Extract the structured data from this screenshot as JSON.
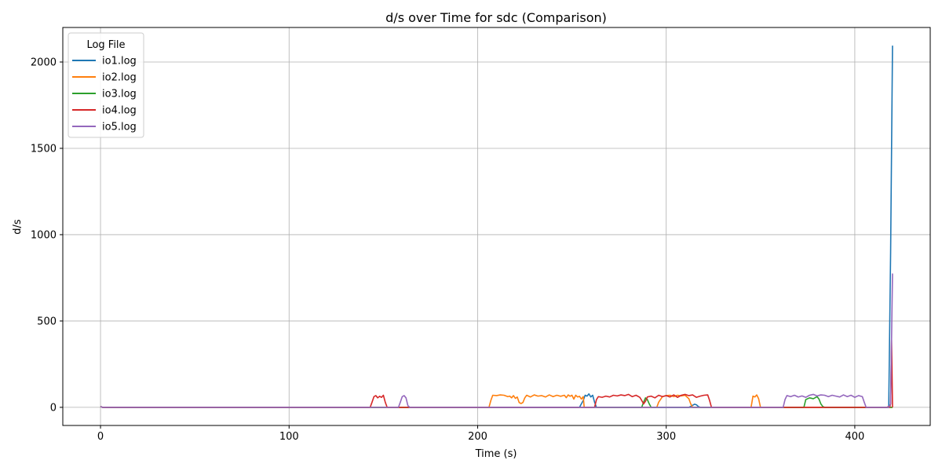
{
  "chart_data": {
    "type": "line",
    "title": "d/s over Time for sdc (Comparison)",
    "xlabel": "Time (s)",
    "ylabel": "d/s",
    "xlim": [
      -20,
      440
    ],
    "ylim": [
      -105,
      2200
    ],
    "xticks": [
      0,
      100,
      200,
      300,
      400
    ],
    "yticks": [
      0,
      500,
      1000,
      1500,
      2000
    ],
    "grid": true,
    "legend": {
      "title": "Log File",
      "position": "top-left"
    },
    "series": [
      {
        "name": "io1.log",
        "color": "#1f77b4",
        "x": [
          0,
          1,
          254,
          256,
          257,
          258,
          259,
          260,
          261,
          262,
          263,
          312,
          314,
          315,
          316,
          317,
          318,
          418,
          419,
          419.5,
          420
        ],
        "y": [
          5,
          0,
          0,
          40,
          70,
          65,
          78,
          60,
          70,
          30,
          0,
          0,
          12,
          18,
          15,
          5,
          0,
          0,
          900,
          1500,
          2095
        ]
      },
      {
        "name": "io2.log",
        "color": "#ff7f0e",
        "x": [
          0,
          1,
          206,
          207,
          208,
          210,
          212,
          214,
          216,
          217,
          218,
          219,
          220,
          221,
          222,
          223,
          224,
          225,
          226,
          228,
          230,
          232,
          234,
          236,
          238,
          240,
          242,
          244,
          246,
          247,
          248,
          249,
          250,
          251,
          252,
          253,
          254,
          255,
          256,
          256.5,
          295,
          296,
          298,
          300,
          302,
          304,
          306,
          308,
          310,
          312,
          313,
          314,
          345,
          346,
          347,
          348,
          349,
          350,
          351,
          420
        ],
        "y": [
          5,
          0,
          0,
          40,
          70,
          68,
          72,
          70,
          62,
          65,
          55,
          68,
          52,
          60,
          28,
          22,
          28,
          55,
          70,
          60,
          72,
          65,
          68,
          60,
          72,
          62,
          70,
          64,
          70,
          56,
          72,
          64,
          70,
          48,
          70,
          60,
          64,
          48,
          62,
          0,
          0,
          30,
          62,
          68,
          70,
          62,
          70,
          66,
          70,
          50,
          20,
          0,
          0,
          65,
          60,
          72,
          50,
          0,
          0,
          0
        ]
      },
      {
        "name": "io3.log",
        "color": "#2ca02c",
        "x": [
          0,
          1,
          287,
          288,
          289,
          290,
          291,
          292,
          373,
          374,
          376,
          378,
          380,
          381,
          382,
          383,
          384,
          420
        ],
        "y": [
          5,
          0,
          0,
          30,
          55,
          45,
          20,
          0,
          0,
          45,
          55,
          50,
          62,
          48,
          20,
          5,
          0,
          0
        ]
      },
      {
        "name": "io4.log",
        "color": "#d62728",
        "x": [
          0,
          1,
          143,
          144,
          145,
          146,
          147,
          148,
          149,
          150,
          151,
          152,
          153,
          262,
          263,
          264,
          266,
          268,
          270,
          272,
          274,
          276,
          278,
          280,
          282,
          284,
          286,
          287,
          288,
          289,
          290,
          292,
          294,
          296,
          298,
          300,
          302,
          304,
          306,
          308,
          310,
          312,
          314,
          316,
          318,
          320,
          322,
          323,
          324,
          417,
          418,
          418.5,
          419,
          419.5,
          420
        ],
        "y": [
          5,
          0,
          0,
          30,
          62,
          68,
          55,
          64,
          58,
          70,
          30,
          0,
          0,
          0,
          45,
          62,
          58,
          65,
          60,
          70,
          66,
          72,
          68,
          75,
          62,
          70,
          58,
          40,
          20,
          35,
          60,
          65,
          55,
          70,
          62,
          68,
          60,
          72,
          58,
          70,
          75,
          68,
          72,
          58,
          65,
          70,
          72,
          40,
          0,
          0,
          5,
          0,
          20,
          390,
          0
        ]
      },
      {
        "name": "io5.log",
        "color": "#9467bd",
        "x": [
          0,
          1,
          158,
          159,
          160,
          161,
          162,
          163,
          164,
          362,
          363,
          364,
          366,
          368,
          370,
          372,
          374,
          376,
          378,
          380,
          382,
          384,
          386,
          388,
          390,
          392,
          394,
          396,
          398,
          400,
          402,
          404,
          405,
          406,
          418,
          419,
          419.5,
          420
        ],
        "y": [
          5,
          0,
          0,
          30,
          62,
          68,
          55,
          10,
          0,
          0,
          45,
          68,
          62,
          70,
          60,
          66,
          58,
          70,
          75,
          66,
          72,
          70,
          62,
          70,
          65,
          60,
          72,
          62,
          70,
          58,
          68,
          62,
          30,
          0,
          0,
          20,
          400,
          775
        ]
      }
    ]
  }
}
